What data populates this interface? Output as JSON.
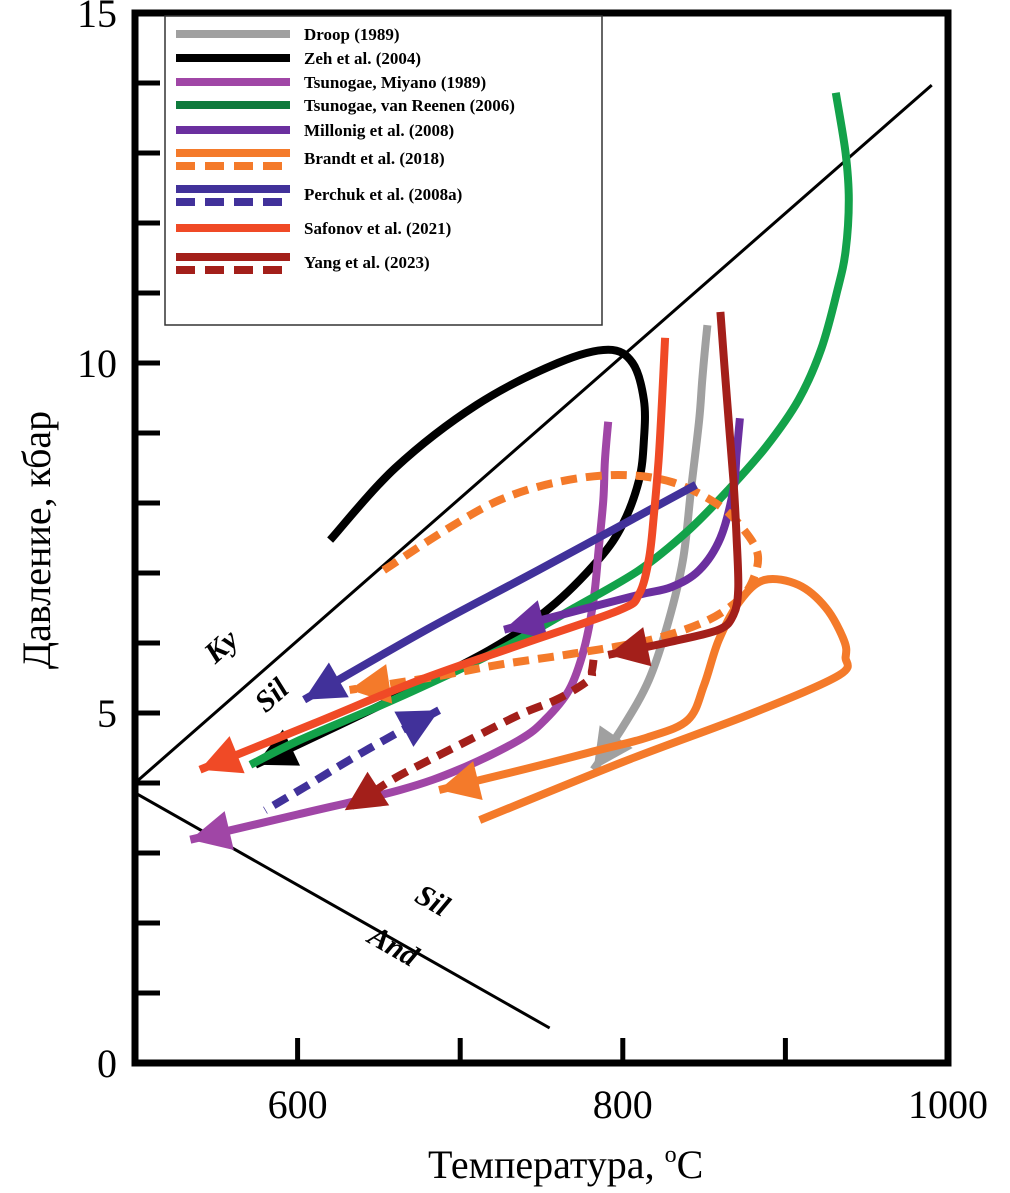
{
  "chart_data": {
    "type": "line",
    "title": "",
    "xlabel": "Температура, °C",
    "xlabel_main": "Температура, ",
    "xlabel_unit_sup": "o",
    "xlabel_unit": "C",
    "ylabel": "Давление, кбар",
    "xlim": [
      500,
      1000
    ],
    "ylim": [
      0,
      15
    ],
    "x_ticks": [
      600,
      700,
      800,
      900,
      1000
    ],
    "x_tick_labels": [
      "600",
      "",
      "800",
      "",
      "1000"
    ],
    "y_ticks": [
      0,
      1,
      2,
      3,
      4,
      5,
      6,
      7,
      8,
      9,
      10,
      11,
      12,
      13,
      14,
      15
    ],
    "y_tick_labels": {
      "0": "0",
      "5": "5",
      "10": "10",
      "15": "15"
    },
    "grid": false,
    "legend_position": "top-left",
    "reference_lines": [
      {
        "name": "Ky-Sil",
        "points": [
          [
            500,
            4.0
          ],
          [
            990,
            13.97
          ]
        ],
        "color": "#000000"
      },
      {
        "name": "Sil-And",
        "points": [
          [
            500,
            3.86
          ],
          [
            755,
            0.5
          ]
        ],
        "color": "#000000"
      }
    ],
    "field_labels": [
      {
        "text": "Ky",
        "at": [
          557,
          5.85
        ],
        "angle": -42
      },
      {
        "text": "Sil",
        "at": [
          588,
          5.15
        ],
        "angle": -42
      },
      {
        "text": "Sil",
        "at": [
          680,
          2.2
        ],
        "angle": 30
      },
      {
        "text": "And",
        "at": [
          656,
          1.55
        ],
        "angle": 30
      }
    ],
    "series": [
      {
        "name": "Droop (1989)",
        "color": "#a0a0a0",
        "dash": false,
        "arrow": true,
        "points": [
          [
            852,
            10.54
          ],
          [
            849,
            9.8
          ],
          [
            847,
            9.19
          ],
          [
            842,
            8.2
          ],
          [
            837,
            7.19
          ],
          [
            828,
            6.3
          ],
          [
            816,
            5.47
          ],
          [
            800,
            4.8
          ],
          [
            782,
            4.19
          ]
        ]
      },
      {
        "name": "Zeh et al. (2004)",
        "color": "#000000",
        "dash": false,
        "arrow": true,
        "points": [
          [
            620,
            7.47
          ],
          [
            660,
            8.5
          ],
          [
            710,
            9.4
          ],
          [
            760,
            10.0
          ],
          [
            791,
            10.19
          ],
          [
            806,
            10.0
          ],
          [
            813,
            9.47
          ],
          [
            813,
            8.9
          ],
          [
            810,
            8.33
          ],
          [
            800,
            7.7
          ],
          [
            785,
            7.19
          ],
          [
            755,
            6.5
          ],
          [
            718,
            5.9
          ],
          [
            650,
            5.1
          ],
          [
            574,
            4.26
          ]
        ]
      },
      {
        "name": "Tsunogae, Miyano (1989)",
        "color": "#a046a6",
        "dash": false,
        "arrow": true,
        "points": [
          [
            791,
            9.16
          ],
          [
            789,
            8.6
          ],
          [
            788,
            8.04
          ],
          [
            785,
            7.3
          ],
          [
            782,
            6.61
          ],
          [
            776,
            5.9
          ],
          [
            767,
            5.33
          ],
          [
            752,
            4.9
          ],
          [
            736,
            4.61
          ],
          [
            700,
            4.2
          ],
          [
            663,
            3.9
          ],
          [
            600,
            3.55
          ],
          [
            534,
            3.19
          ]
        ]
      },
      {
        "name": "Tsunogae, van Reenen (2006)",
        "color": "#13a24a",
        "dash": false,
        "arrow": false,
        "points": [
          [
            931,
            13.86
          ],
          [
            937,
            13.0
          ],
          [
            939,
            12.33
          ],
          [
            937,
            11.6
          ],
          [
            932,
            11.04
          ],
          [
            922,
            10.2
          ],
          [
            908,
            9.47
          ],
          [
            888,
            8.8
          ],
          [
            865,
            8.19
          ],
          [
            840,
            7.6
          ],
          [
            810,
            7.04
          ],
          [
            770,
            6.5
          ],
          [
            724,
            5.9
          ],
          [
            660,
            5.2
          ],
          [
            601,
            4.61
          ],
          [
            571,
            4.26
          ]
        ]
      },
      {
        "name": "Millonig et al. (2008)",
        "color": "#6b2f9f",
        "dash": false,
        "arrow": true,
        "points": [
          [
            872,
            9.21
          ],
          [
            870,
            8.7
          ],
          [
            868,
            8.19
          ],
          [
            860,
            7.5
          ],
          [
            847,
            7.04
          ],
          [
            830,
            6.8
          ],
          [
            810,
            6.69
          ],
          [
            770,
            6.45
          ],
          [
            727,
            6.19
          ]
        ]
      },
      {
        "name": "Brandt et al. (2018)",
        "color": "#f47a2a",
        "dash": false,
        "arrow": true,
        "points": [
          [
            712,
            3.47
          ],
          [
            800,
            4.3
          ],
          [
            880,
            5.0
          ],
          [
            933,
            5.54
          ],
          [
            937,
            5.8
          ],
          [
            936,
            6.04
          ],
          [
            925,
            6.5
          ],
          [
            908,
            6.83
          ],
          [
            887,
            6.9
          ],
          [
            872,
            6.6
          ],
          [
            859,
            6.04
          ],
          [
            850,
            5.4
          ],
          [
            840,
            4.9
          ],
          [
            815,
            4.65
          ],
          [
            785,
            4.47
          ],
          [
            740,
            4.2
          ],
          [
            687,
            3.9
          ]
        ]
      },
      {
        "name": "Brandt et al. (2018)",
        "color": "#f47a2a",
        "dash": true,
        "arrow": true,
        "points": [
          [
            653,
            7.04
          ],
          [
            690,
            7.6
          ],
          [
            724,
            8.04
          ],
          [
            760,
            8.3
          ],
          [
            797,
            8.4
          ],
          [
            830,
            8.3
          ],
          [
            859,
            7.97
          ],
          [
            875,
            7.6
          ],
          [
            883,
            7.26
          ],
          [
            880,
            6.9
          ],
          [
            871,
            6.61
          ],
          [
            850,
            6.3
          ],
          [
            816,
            6.04
          ],
          [
            770,
            5.85
          ],
          [
            724,
            5.69
          ],
          [
            680,
            5.5
          ],
          [
            632,
            5.33
          ]
        ]
      },
      {
        "name": "Perchuk et al. (2008a)",
        "color": "#41319a",
        "dash": false,
        "arrow": true,
        "points": [
          [
            845,
            8.26
          ],
          [
            748,
            7.04
          ],
          [
            680,
            6.2
          ],
          [
            604,
            5.19
          ]
        ]
      },
      {
        "name": "Perchuk et al. (2008a)",
        "color": "#41319a",
        "dash": true,
        "arrow": true,
        "arrow_start": true,
        "points": [
          [
            687,
            5.04
          ],
          [
            660,
            4.7
          ],
          [
            632,
            4.33
          ],
          [
            605,
            3.95
          ],
          [
            580,
            3.61
          ]
        ]
      },
      {
        "name": "Safonov et al. (2021)",
        "color": "#f04a26",
        "dash": false,
        "arrow": true,
        "points": [
          [
            826,
            10.36
          ],
          [
            824,
            9.4
          ],
          [
            822,
            8.61
          ],
          [
            819,
            7.8
          ],
          [
            816,
            7.19
          ],
          [
            810,
            6.7
          ],
          [
            798,
            6.47
          ],
          [
            740,
            6.0
          ],
          [
            675,
            5.47
          ],
          [
            610,
            4.85
          ],
          [
            540,
            4.19
          ]
        ]
      },
      {
        "name": "Yang et al. (2023)",
        "color": "#a31f1a",
        "dash": false,
        "arrow": true,
        "points": [
          [
            860,
            10.73
          ],
          [
            864,
            9.5
          ],
          [
            868,
            8.33
          ],
          [
            870,
            7.5
          ],
          [
            871,
            6.76
          ],
          [
            868,
            6.4
          ],
          [
            859,
            6.19
          ],
          [
            830,
            6.02
          ],
          [
            791,
            5.83
          ]
        ]
      },
      {
        "name": "Yang et al. (2023)",
        "color": "#a31f1a",
        "dash": true,
        "arrow": true,
        "points": [
          [
            782,
            5.76
          ],
          [
            781,
            5.6
          ],
          [
            779,
            5.47
          ],
          [
            760,
            5.2
          ],
          [
            736,
            4.97
          ],
          [
            700,
            4.55
          ],
          [
            663,
            4.11
          ],
          [
            645,
            3.85
          ],
          [
            629,
            3.61
          ]
        ]
      }
    ],
    "legend": [
      {
        "label": "Droop (1989)",
        "color": "#a0a0a0",
        "dashed_variant": false
      },
      {
        "label": "Zeh et al. (2004)",
        "color": "#000000",
        "dashed_variant": false
      },
      {
        "label": "Tsunogae, Miyano (1989)",
        "color": "#a046a6",
        "dashed_variant": false
      },
      {
        "label": "Tsunogae, van Reenen (2006)",
        "color": "#0e7a3c",
        "dashed_variant": false
      },
      {
        "label": "Millonig et al. (2008)",
        "color": "#6b2f9f",
        "dashed_variant": false
      },
      {
        "label": "Brandt et al. (2018)",
        "color": "#f47a2a",
        "dashed_variant": true
      },
      {
        "label": "Perchuk et al. (2008a)",
        "color": "#41319a",
        "dashed_variant": true
      },
      {
        "label": "Safonov et al. (2021)",
        "color": "#f04a26",
        "dashed_variant": false
      },
      {
        "label": "Yang et al. (2023)",
        "color": "#a31f1a",
        "dashed_variant": true
      }
    ]
  }
}
